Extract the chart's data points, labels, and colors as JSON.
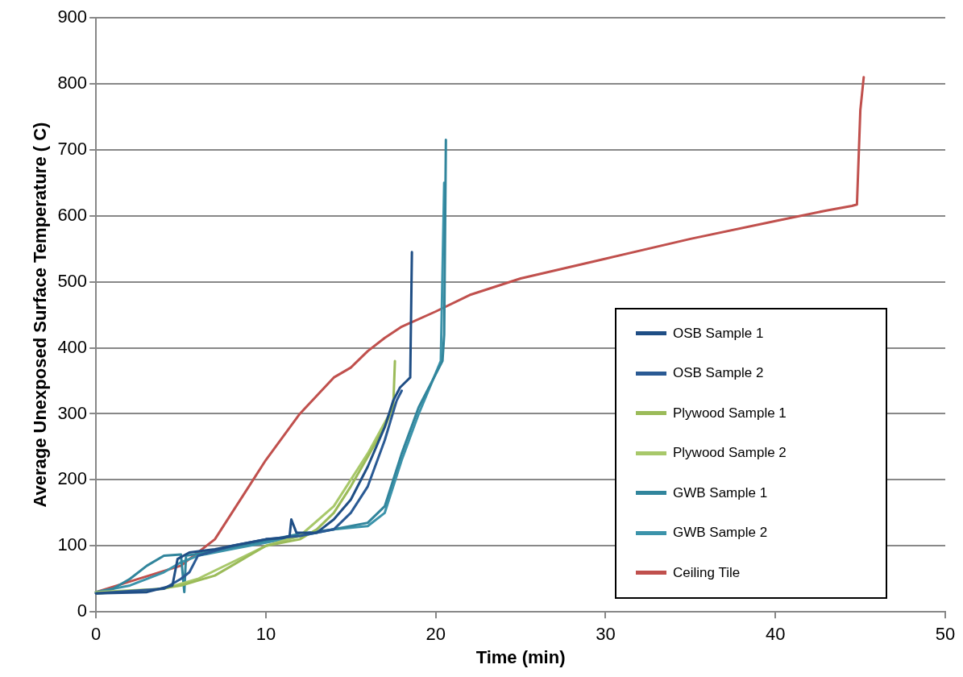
{
  "chart_data": {
    "type": "line",
    "xlabel": "Time (min)",
    "ylabel": "Average Unexposed Surface Temperature ( C)",
    "xlim": [
      0,
      50
    ],
    "xticks": [
      0,
      10,
      20,
      30,
      40,
      50
    ],
    "ylim": [
      0,
      900
    ],
    "yticks": [
      0,
      100,
      200,
      300,
      400,
      500,
      600,
      700,
      800,
      900
    ],
    "grid": "y",
    "legend": "right",
    "marker": "none",
    "line_style": "solid",
    "series": [
      {
        "name": "OSB Sample 1",
        "color": "#1f4e85",
        "x": [
          0,
          3,
          4.5,
          4.8,
          5.5,
          7,
          9,
          10,
          11,
          11.4,
          11.5,
          11.8,
          13,
          14,
          15,
          16,
          17,
          17.5,
          17.9,
          18.5,
          18.6
        ],
        "values": [
          28,
          30,
          40,
          80,
          90,
          95,
          105,
          110,
          112,
          115,
          140,
          120,
          120,
          140,
          170,
          220,
          280,
          320,
          340,
          355,
          545
        ]
      },
      {
        "name": "OSB Sample 2",
        "color": "#2a5a94",
        "x": [
          0,
          4,
          5,
          5.5,
          6,
          8,
          10,
          12,
          14,
          15,
          16,
          17,
          17.7,
          18
        ],
        "values": [
          28,
          35,
          50,
          60,
          85,
          100,
          110,
          115,
          125,
          150,
          190,
          260,
          320,
          335
        ]
      },
      {
        "name": "Plywood Sample 1",
        "color": "#9bbb59",
        "x": [
          0,
          3,
          5,
          7,
          8,
          9,
          10,
          12,
          13,
          14,
          15,
          16,
          17,
          17.5,
          17.6
        ],
        "values": [
          28,
          32,
          40,
          55,
          70,
          85,
          100,
          110,
          125,
          150,
          190,
          235,
          280,
          310,
          380
        ]
      },
      {
        "name": "Plywood Sample 2",
        "color": "#a8c86a",
        "x": [
          0,
          4,
          6,
          8,
          10,
          12,
          14,
          16,
          17.5
        ],
        "values": [
          30,
          35,
          50,
          75,
          100,
          115,
          160,
          240,
          310
        ]
      },
      {
        "name": "GWB Sample 1",
        "color": "#31859c",
        "x": [
          0,
          1,
          2,
          3,
          4,
          5,
          5.2,
          5.3,
          6,
          8,
          10,
          12,
          14,
          16,
          17,
          18,
          19,
          20,
          20.4,
          20.5,
          20.6
        ],
        "values": [
          30,
          35,
          50,
          70,
          85,
          87,
          30,
          85,
          88,
          98,
          108,
          118,
          125,
          135,
          160,
          240,
          310,
          360,
          380,
          420,
          715
        ]
      },
      {
        "name": "GWB Sample 2",
        "color": "#3b93aa",
        "x": [
          0,
          2,
          4,
          5,
          6,
          8,
          10,
          12,
          14,
          16,
          17,
          18,
          19,
          20.3,
          20.5
        ],
        "values": [
          30,
          40,
          60,
          75,
          85,
          95,
          105,
          115,
          125,
          130,
          150,
          230,
          300,
          380,
          650
        ]
      },
      {
        "name": "Ceiling Tile",
        "color": "#c0504d",
        "x": [
          0,
          5,
          7,
          8,
          9,
          10,
          12,
          14,
          15,
          16,
          17,
          18,
          20,
          22,
          25,
          30,
          35,
          40,
          43,
          44.5,
          44.8,
          45,
          45.2
        ],
        "values": [
          30,
          70,
          110,
          150,
          190,
          230,
          300,
          355,
          370,
          395,
          415,
          432,
          455,
          480,
          505,
          535,
          565,
          592,
          608,
          615,
          617,
          760,
          810
        ]
      }
    ]
  }
}
